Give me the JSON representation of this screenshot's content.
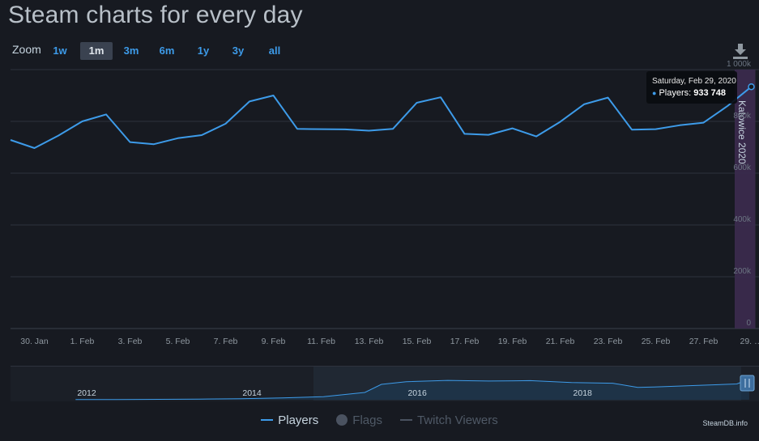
{
  "page": {
    "title": "Steam charts for every day",
    "credit": "SteamDB.info"
  },
  "zoom": {
    "label": "Zoom",
    "active": "1m",
    "buttons": [
      "1w",
      "1m",
      "3m",
      "6m",
      "1y",
      "3y",
      "all"
    ]
  },
  "tooltip": {
    "date": "Saturday, Feb 29, 2020",
    "series_label": "Players:",
    "value": "933 748"
  },
  "legend": {
    "players": "Players",
    "flags": "Flags",
    "twitch": "Twitch Viewers"
  },
  "colors": {
    "background": "#171a21",
    "series": "#3d9be9",
    "flag_band": "#3a2a4d",
    "grid": "#2e333d"
  },
  "icons": {
    "download": "download-icon"
  },
  "chart_data": [
    {
      "type": "line",
      "series": [
        {
          "name": "Players",
          "x": [
            "Jan 29",
            "Jan 30",
            "Jan 31",
            "Feb 1",
            "Feb 2",
            "Feb 3",
            "Feb 4",
            "Feb 5",
            "Feb 6",
            "Feb 7",
            "Feb 8",
            "Feb 9",
            "Feb 10",
            "Feb 11",
            "Feb 12",
            "Feb 13",
            "Feb 14",
            "Feb 15",
            "Feb 16",
            "Feb 17",
            "Feb 18",
            "Feb 19",
            "Feb 20",
            "Feb 21",
            "Feb 22",
            "Feb 23",
            "Feb 24",
            "Feb 25",
            "Feb 26",
            "Feb 27",
            "Feb 28",
            "Feb 29"
          ],
          "values": [
            728000,
            697000,
            745000,
            800000,
            827000,
            720000,
            712000,
            735000,
            747000,
            791000,
            877000,
            900000,
            771000,
            770000,
            769000,
            764000,
            771000,
            872000,
            893000,
            752000,
            748000,
            773000,
            742000,
            798000,
            866000,
            892000,
            768000,
            770000,
            785000,
            795000,
            859000,
            933748
          ]
        }
      ],
      "x_tick_labels": [
        "30. Jan",
        "1. Feb",
        "3. Feb",
        "5. Feb",
        "7. Feb",
        "9. Feb",
        "11. Feb",
        "13. Feb",
        "15. Feb",
        "17. Feb",
        "19. Feb",
        "21. Feb",
        "23. Feb",
        "25. Feb",
        "27. Feb",
        "29. …"
      ],
      "y_tick_labels": [
        "0",
        "200k",
        "400k",
        "600k",
        "800k",
        "1 000k"
      ],
      "ylim": [
        0,
        1000000
      ],
      "grid": true,
      "flag": {
        "label": "Katowice 2020",
        "x_start": "Feb 28",
        "x_end": "Feb 29"
      }
    },
    {
      "type": "area",
      "role": "navigator",
      "x_tick_labels": [
        "2012",
        "2014",
        "2016",
        "2018"
      ],
      "years": [
        2012,
        2012.5,
        2013,
        2013.5,
        2014,
        2014.5,
        2015,
        2015.5,
        2015.7,
        2016,
        2016.5,
        2017,
        2017.5,
        2018,
        2018.5,
        2018.8,
        2019,
        2019.5,
        2020,
        2020.15
      ],
      "values": [
        10000,
        12000,
        18000,
        30000,
        45000,
        80000,
        140000,
        330000,
        700000,
        820000,
        880000,
        850000,
        870000,
        780000,
        750000,
        560000,
        580000,
        650000,
        720000,
        935000
      ],
      "ylim": [
        0,
        1400000
      ]
    }
  ]
}
